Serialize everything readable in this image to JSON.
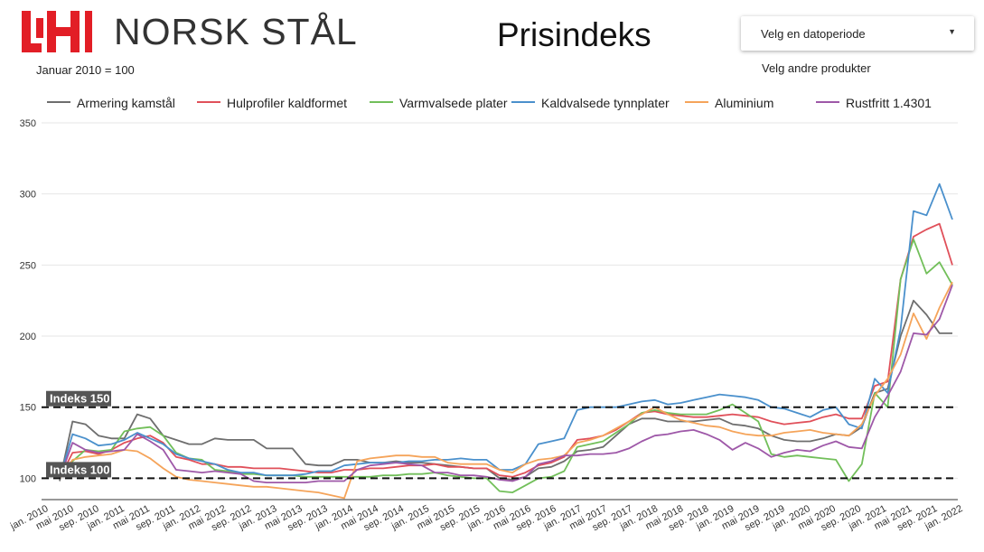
{
  "header": {
    "brand": "NORSK STÅL",
    "subtitle": "Januar 2010 = 100",
    "title": "Prisindeks"
  },
  "controls": {
    "date_dropdown_label": "Velg en datoperiode",
    "other_products_link": "Velg andre produkter"
  },
  "colors": {
    "logo_red": "#e21e26",
    "reference_line": "#111111"
  },
  "chart_data": {
    "type": "line",
    "ylim": [
      85,
      350
    ],
    "yticks": [
      100,
      150,
      200,
      250,
      300,
      350
    ],
    "grid": true,
    "legend_position": "top",
    "x_tick_labels": [
      "jan. 2010",
      "mai 2010",
      "sep. 2010",
      "jan. 2011",
      "mai 2011",
      "sep. 2011",
      "jan. 2012",
      "mai 2012",
      "sep. 2012",
      "jan. 2013",
      "mai 2013",
      "sep. 2013",
      "jan. 2014",
      "mai 2014",
      "sep. 2014",
      "jan. 2015",
      "mai 2015",
      "sep. 2015",
      "jan. 2016",
      "mai 2016",
      "sep. 2016",
      "jan. 2017",
      "mai 2017",
      "sep. 2017",
      "jan. 2018",
      "mai 2018",
      "sep. 2018",
      "jan. 2019",
      "mai 2019",
      "sep. 2019",
      "jan. 2020",
      "mai 2020",
      "sep. 2020",
      "jan. 2021",
      "mai 2021",
      "sep. 2021",
      "jan. 2022"
    ],
    "reference_lines": [
      {
        "value": 150,
        "label": "Indeks 150"
      },
      {
        "value": 100,
        "label": "Indeks 100"
      }
    ],
    "series": [
      {
        "name": "Armering kamstål",
        "color": "#6e6e6e",
        "values": [
          98,
          140,
          138,
          130,
          128,
          128,
          145,
          142,
          130,
          127,
          124,
          124,
          128,
          127,
          127,
          127,
          121,
          121,
          121,
          110,
          109,
          109,
          113,
          113,
          111,
          111,
          112,
          111,
          111,
          110,
          109,
          108,
          107,
          107,
          100,
          99,
          101,
          107,
          108,
          112,
          119,
          120,
          122,
          130,
          138,
          142,
          142,
          140,
          140,
          140,
          141,
          142,
          138,
          137,
          135,
          130,
          127,
          126,
          126,
          128,
          131,
          130,
          136,
          160,
          163,
          200,
          225,
          215,
          202,
          202
        ]
      },
      {
        "name": "Hulprofiler kaldformet",
        "color": "#e0505a",
        "values": [
          100,
          118,
          119,
          117,
          120,
          125,
          128,
          130,
          125,
          115,
          113,
          110,
          110,
          108,
          108,
          107,
          107,
          107,
          106,
          105,
          104,
          104,
          106,
          106,
          107,
          107,
          108,
          109,
          109,
          110,
          108,
          108,
          107,
          107,
          102,
          101,
          104,
          109,
          111,
          115,
          127,
          128,
          130,
          134,
          140,
          146,
          147,
          145,
          144,
          143,
          143,
          144,
          145,
          144,
          143,
          140,
          138,
          139,
          140,
          143,
          145,
          142,
          142,
          165,
          168,
          240,
          270,
          275,
          279,
          250
        ]
      },
      {
        "name": "Varmvalsede plater",
        "color": "#72bf5a",
        "values": [
          100,
          112,
          120,
          119,
          120,
          133,
          135,
          136,
          130,
          118,
          114,
          113,
          106,
          105,
          103,
          103,
          102,
          102,
          102,
          101,
          101,
          101,
          101,
          101,
          101,
          102,
          102,
          103,
          103,
          104,
          102,
          101,
          100,
          100,
          91,
          90,
          95,
          100,
          101,
          105,
          122,
          124,
          126,
          132,
          138,
          146,
          148,
          146,
          145,
          145,
          145,
          148,
          152,
          146,
          140,
          117,
          115,
          116,
          115,
          114,
          113,
          98,
          110,
          160,
          150,
          240,
          268,
          244,
          252,
          236
        ]
      },
      {
        "name": "Kaldvalsede tynnplater",
        "color": "#4a90cc",
        "values": [
          100,
          131,
          128,
          123,
          124,
          127,
          132,
          128,
          124,
          117,
          114,
          112,
          110,
          106,
          104,
          104,
          102,
          102,
          102,
          103,
          105,
          105,
          109,
          110,
          111,
          111,
          111,
          112,
          112,
          113,
          113,
          114,
          113,
          113,
          106,
          106,
          110,
          124,
          126,
          128,
          148,
          150,
          150,
          150,
          152,
          154,
          155,
          152,
          153,
          155,
          157,
          159,
          158,
          157,
          155,
          150,
          149,
          146,
          143,
          148,
          150,
          138,
          135,
          170,
          160,
          205,
          288,
          285,
          307,
          282
        ]
      },
      {
        "name": "Aluminium",
        "color": "#f5a45a",
        "values": [
          100,
          113,
          115,
          116,
          117,
          120,
          119,
          114,
          107,
          101,
          99,
          98,
          97,
          96,
          95,
          94,
          94,
          93,
          92,
          91,
          90,
          88,
          86,
          112,
          114,
          115,
          116,
          116,
          115,
          115,
          111,
          110,
          110,
          110,
          106,
          104,
          110,
          113,
          114,
          116,
          125,
          127,
          130,
          135,
          140,
          145,
          150,
          145,
          141,
          139,
          137,
          136,
          133,
          131,
          130,
          130,
          132,
          133,
          134,
          132,
          131,
          130,
          138,
          158,
          170,
          187,
          216,
          198,
          220,
          238
        ]
      },
      {
        "name": "Rustfritt 1.4301",
        "color": "#9e58a8",
        "values": [
          100,
          125,
          120,
          118,
          119,
          120,
          131,
          126,
          120,
          106,
          105,
          104,
          105,
          104,
          103,
          98,
          97,
          97,
          97,
          97,
          98,
          98,
          98,
          106,
          109,
          110,
          111,
          110,
          109,
          104,
          104,
          102,
          102,
          101,
          99,
          98,
          101,
          110,
          112,
          116,
          116,
          117,
          117,
          118,
          121,
          126,
          130,
          131,
          133,
          134,
          131,
          127,
          120,
          125,
          121,
          115,
          118,
          120,
          119,
          123,
          126,
          122,
          121,
          143,
          158,
          175,
          202,
          201,
          212,
          236
        ]
      }
    ]
  }
}
